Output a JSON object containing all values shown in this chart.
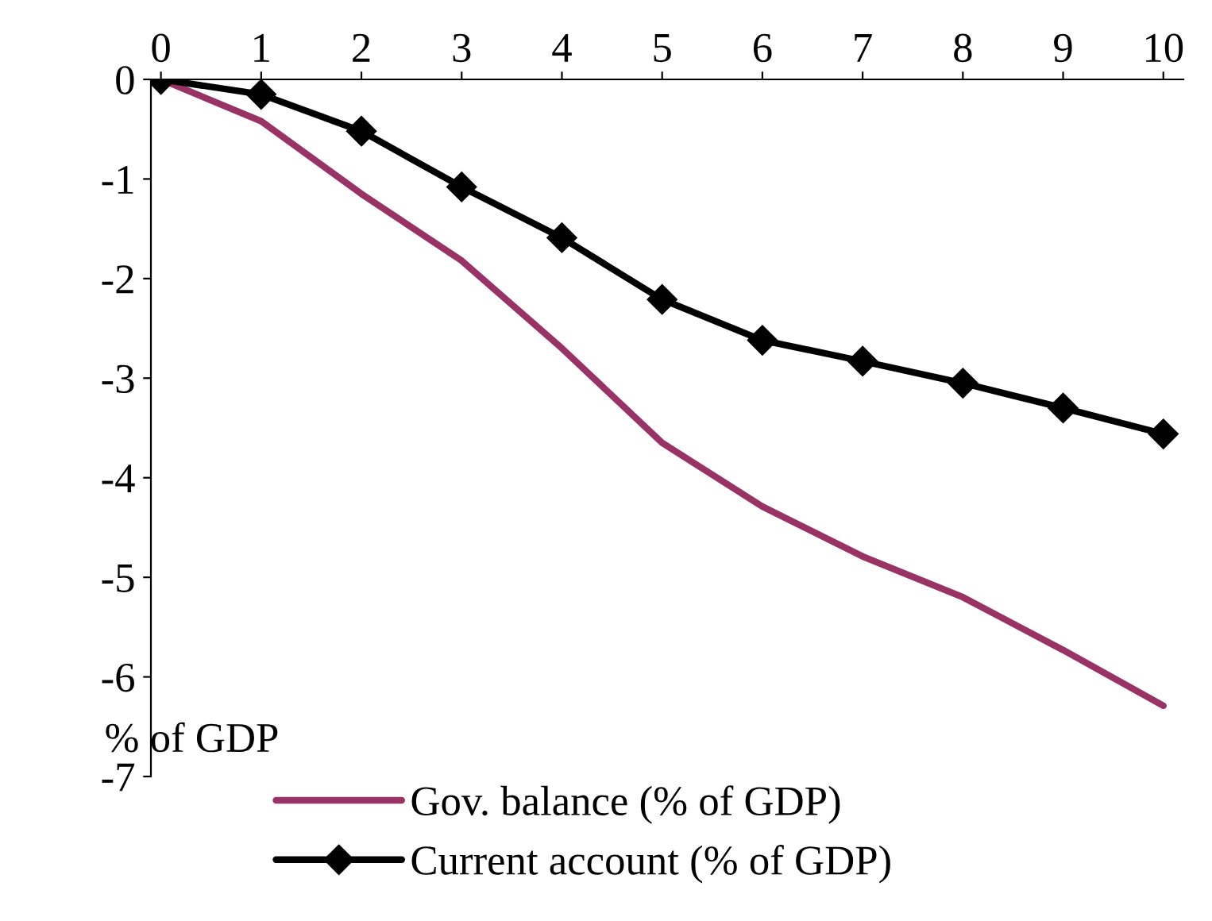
{
  "chart_data": {
    "type": "line",
    "ylabel": "% of GDP",
    "categories": [
      "0",
      "1",
      "2",
      "3",
      "4",
      "5",
      "6",
      "7",
      "8",
      "9",
      "10"
    ],
    "series": [
      {
        "name": "Gov. balance (% of GDP)",
        "color": "#993366",
        "marker": "none",
        "values": [
          0,
          -0.42,
          -1.15,
          -1.82,
          -2.7,
          -3.65,
          -4.29,
          -4.79,
          -5.2,
          -5.73,
          -6.29
        ]
      },
      {
        "name": "Current account (% of GDP)",
        "color": "#000000",
        "marker": "diamond",
        "values": [
          0,
          -0.15,
          -0.52,
          -1.08,
          -1.59,
          -2.21,
          -2.62,
          -2.83,
          -3.05,
          -3.3,
          -3.56
        ]
      }
    ],
    "ylim": [
      -7,
      0
    ],
    "yticks": [
      0,
      -1,
      -2,
      -3,
      -4,
      -5,
      -6,
      -7
    ],
    "grid": false,
    "legend": "bottom"
  }
}
